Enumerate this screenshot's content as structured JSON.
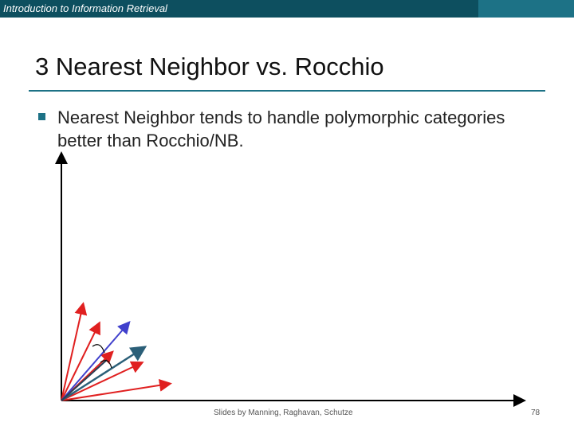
{
  "header": {
    "course_title": "Introduction to Information Retrieval",
    "bar_color": "#0d4f5f",
    "accent_color": "#1d7286"
  },
  "slide": {
    "title": "3 Nearest Neighbor vs. Rocchio",
    "bullets": [
      {
        "text": "Nearest Neighbor tends to handle polymorphic categories better than Rocchio/NB."
      }
    ]
  },
  "figure": {
    "vector_colors": {
      "red": "#e02020",
      "blue": "#4040cc",
      "teal": "#2b5f78"
    }
  },
  "footer": {
    "credit": "Slides by Manning, Raghavan, Schutze",
    "page_number": "78"
  }
}
